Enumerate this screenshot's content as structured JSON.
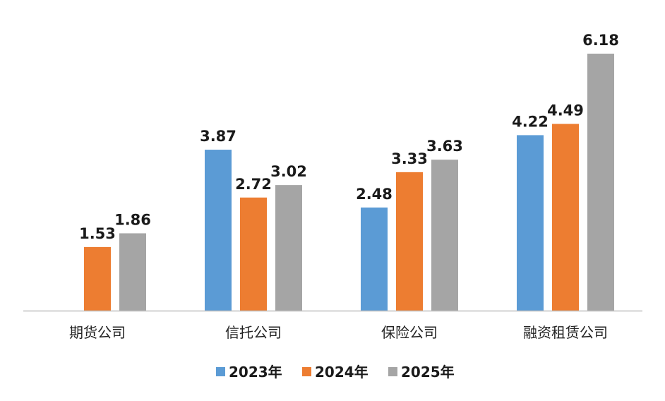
{
  "chart_data": {
    "type": "bar",
    "categories": [
      "期货公司",
      "信托公司",
      "保险公司",
      "融资租赁公司"
    ],
    "series": [
      {
        "name": "2023年",
        "color": "#5B9BD5",
        "values": [
          null,
          3.87,
          2.48,
          4.22
        ]
      },
      {
        "name": "2024年",
        "color": "#ED7D31",
        "values": [
          1.53,
          2.72,
          3.33,
          4.49
        ]
      },
      {
        "name": "2025年",
        "color": "#A5A5A5",
        "values": [
          1.86,
          3.02,
          3.63,
          6.18
        ]
      }
    ],
    "value_labels": [
      [
        null,
        "3.87",
        "2.48",
        "4.22"
      ],
      [
        "1.53",
        "2.72",
        "3.33",
        "4.49"
      ],
      [
        "1.86",
        "3.02",
        "3.63",
        "6.18"
      ]
    ],
    "title": "",
    "xlabel": "",
    "ylabel": "",
    "ylim": [
      0,
      6.18
    ],
    "grid": false,
    "legend_position": "bottom-center",
    "axis_color": "#BFBFBF"
  }
}
